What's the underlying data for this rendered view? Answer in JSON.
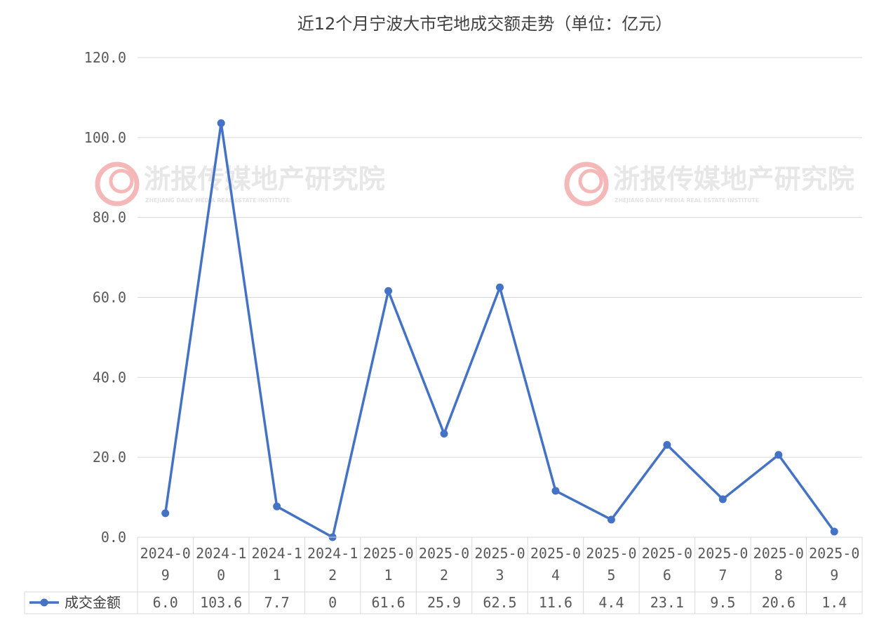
{
  "watermark": {
    "name": "浙报传媒地产研究院",
    "subtitle": "ZHEJIANG DAILY MEDIA REAL ESTATE INSTITUTE"
  },
  "chart_data": {
    "type": "line",
    "title": "近12个月宁波大市宅地成交额走势（单位：亿元）",
    "categories": [
      "2024-09",
      "2024-10",
      "2024-11",
      "2024-12",
      "2025-01",
      "2025-02",
      "2025-03",
      "2025-04",
      "2025-05",
      "2025-06",
      "2025-07",
      "2025-08",
      "2025-09"
    ],
    "category_lines": [
      [
        "2024-0",
        "9"
      ],
      [
        "2024-1",
        "0"
      ],
      [
        "2024-1",
        "1"
      ],
      [
        "2024-1",
        "2"
      ],
      [
        "2025-0",
        "1"
      ],
      [
        "2025-0",
        "2"
      ],
      [
        "2025-0",
        "3"
      ],
      [
        "2025-0",
        "4"
      ],
      [
        "2025-0",
        "5"
      ],
      [
        "2025-0",
        "6"
      ],
      [
        "2025-0",
        "7"
      ],
      [
        "2025-0",
        "8"
      ],
      [
        "2025-0",
        "9"
      ]
    ],
    "series": [
      {
        "name": "成交金额",
        "values": [
          6.0,
          103.6,
          7.7,
          0,
          61.6,
          25.9,
          62.5,
          11.6,
          4.4,
          23.1,
          9.5,
          20.6,
          1.4
        ],
        "value_labels": [
          "6.0",
          "103.6",
          "7.7",
          "0",
          "61.6",
          "25.9",
          "62.5",
          "11.6",
          "4.4",
          "23.1",
          "9.5",
          "20.6",
          "1.4"
        ],
        "color": "#4472c4"
      }
    ],
    "ylim": [
      0,
      120
    ],
    "yticks": [
      0,
      20,
      40,
      60,
      80,
      100,
      120
    ],
    "ytick_labels": [
      "0.0",
      "20.0",
      "40.0",
      "60.0",
      "80.0",
      "100.0",
      "120.0"
    ],
    "grid": true,
    "legend": "data-table",
    "grid_color": "#d9d9d9",
    "watermark_color": "#f4b8b8"
  }
}
